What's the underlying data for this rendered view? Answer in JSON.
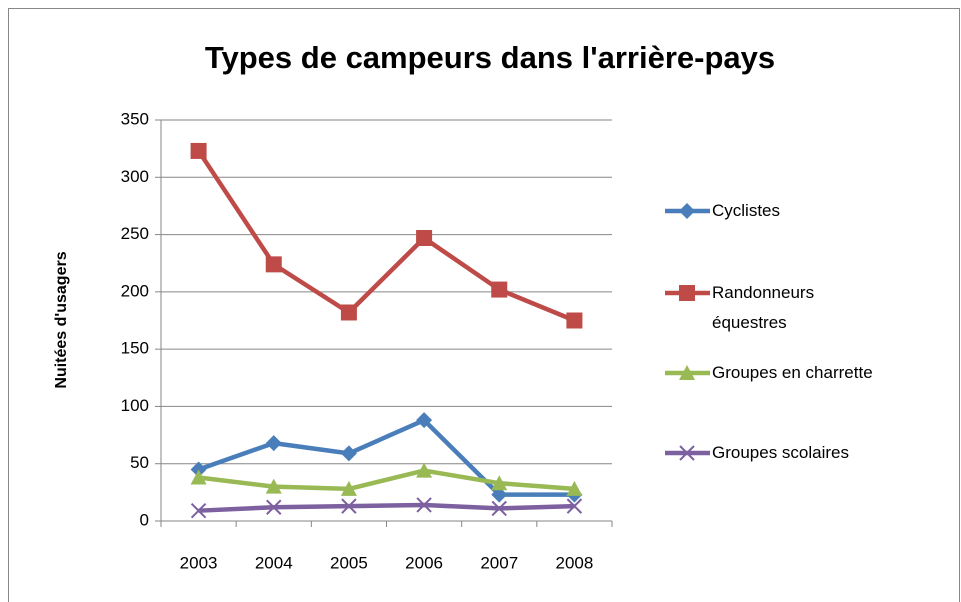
{
  "chart_data": {
    "type": "line",
    "title": "Types de campeurs dans l'arrière-pays",
    "y_label": "Nuitées d'usagers",
    "categories": [
      "2003",
      "2004",
      "2005",
      "2006",
      "2007",
      "2008"
    ],
    "series": [
      {
        "name": "Cyclistes",
        "color": "#4a7ebb",
        "marker": "diamond",
        "values": [
          45,
          68,
          59,
          88,
          23,
          23
        ]
      },
      {
        "name": "Randonneurs équestres",
        "color": "#be4b48",
        "marker": "square",
        "values": [
          323,
          224,
          182,
          247,
          202,
          175
        ]
      },
      {
        "name": "Groupes en charrette",
        "color": "#98b954",
        "marker": "triangle",
        "values": [
          38,
          30,
          28,
          44,
          33,
          28
        ]
      },
      {
        "name": "Groupes scolaires",
        "color": "#7d60a0",
        "marker": "x",
        "values": [
          9,
          12,
          13,
          14,
          11,
          13
        ]
      }
    ],
    "ylim": [
      0,
      350
    ],
    "yticks": [
      0,
      50,
      100,
      150,
      200,
      250,
      300,
      350
    ],
    "grid": true,
    "legend": "right"
  }
}
